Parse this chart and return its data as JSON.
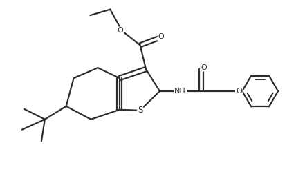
{
  "bg_color": "#ffffff",
  "line_color": "#2d2d2d",
  "line_width": 1.6,
  "figsize": [
    4.28,
    2.49
  ],
  "dpi": 100,
  "xlim": [
    0.0,
    8.56
  ],
  "ylim": [
    0.0,
    4.98
  ]
}
